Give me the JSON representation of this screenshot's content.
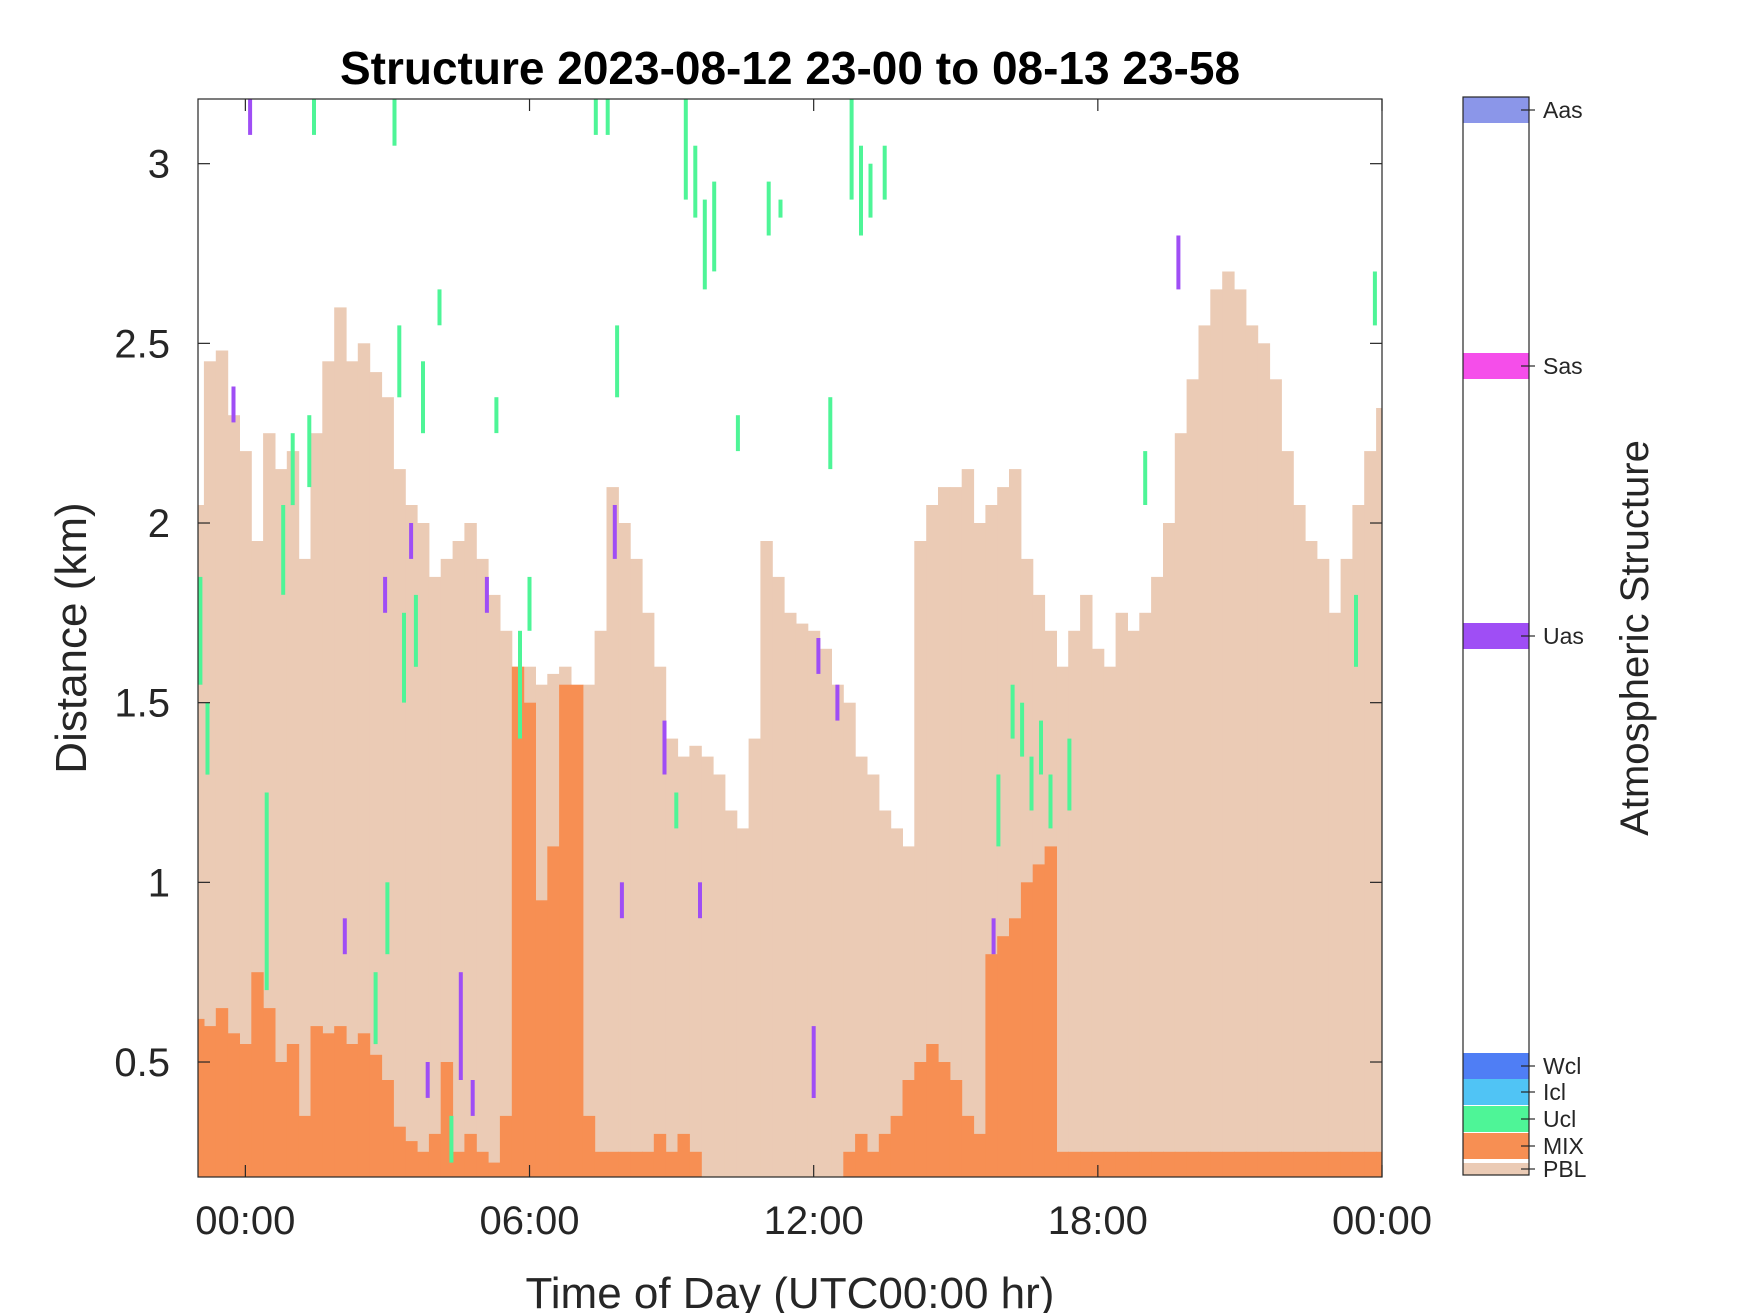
{
  "chart_data": {
    "type": "heatmap",
    "title": "Structure 2023-08-12 23-00 to 08-13 23-58",
    "xlabel": "Time of Day (UTC00:00 hr)",
    "ylabel": "Distance (km)",
    "xlim_hours": [
      -1,
      24
    ],
    "ylim": [
      0.18,
      3.18
    ],
    "x_ticks": [
      {
        "value": 0,
        "label": "00:00"
      },
      {
        "value": 6,
        "label": "06:00"
      },
      {
        "value": 12,
        "label": "12:00"
      },
      {
        "value": 18,
        "label": "18:00"
      },
      {
        "value": 24,
        "label": "00:00"
      }
    ],
    "y_ticks": [
      {
        "value": 0.5,
        "label": "0.5"
      },
      {
        "value": 1,
        "label": "1"
      },
      {
        "value": 1.5,
        "label": "1.5"
      },
      {
        "value": 2,
        "label": "2"
      },
      {
        "value": 2.5,
        "label": "2.5"
      },
      {
        "value": 3,
        "label": "3"
      }
    ],
    "colorbar": {
      "label": "Atmospheric Structure",
      "classes": [
        {
          "name": "PBL",
          "color": "#EBCBB5"
        },
        {
          "name": "MIX",
          "color": "#F78F53"
        },
        {
          "name": "Ucl",
          "color": "#4EF597"
        },
        {
          "name": "Icl",
          "color": "#50C4F5"
        },
        {
          "name": "Wcl",
          "color": "#4F7EF5"
        },
        {
          "name": "Uas",
          "color": "#9F4EF5"
        },
        {
          "name": "Sas",
          "color": "#F54EEA"
        },
        {
          "name": "Aas",
          "color": "#8B96E9"
        }
      ]
    },
    "series": [
      {
        "name": "PBL",
        "points": [
          [
            -1.0,
            2.05
          ],
          [
            -0.75,
            2.45
          ],
          [
            -0.5,
            2.48
          ],
          [
            -0.25,
            2.3
          ],
          [
            0.0,
            2.2
          ],
          [
            0.25,
            1.95
          ],
          [
            0.5,
            2.25
          ],
          [
            0.75,
            2.15
          ],
          [
            1.0,
            2.2
          ],
          [
            1.25,
            1.9
          ],
          [
            1.5,
            2.25
          ],
          [
            1.75,
            2.45
          ],
          [
            2.0,
            2.6
          ],
          [
            2.25,
            2.45
          ],
          [
            2.5,
            2.5
          ],
          [
            2.75,
            2.42
          ],
          [
            3.0,
            2.35
          ],
          [
            3.25,
            2.15
          ],
          [
            3.5,
            2.05
          ],
          [
            3.75,
            2.0
          ],
          [
            4.0,
            1.85
          ],
          [
            4.25,
            1.9
          ],
          [
            4.5,
            1.95
          ],
          [
            4.75,
            2.0
          ],
          [
            5.0,
            1.9
          ],
          [
            5.25,
            1.8
          ],
          [
            5.5,
            1.7
          ],
          [
            5.75,
            1.6
          ],
          [
            6.0,
            1.6
          ],
          [
            6.25,
            1.55
          ],
          [
            6.5,
            1.58
          ],
          [
            6.75,
            1.6
          ],
          [
            7.0,
            1.5
          ],
          [
            7.25,
            1.55
          ],
          [
            7.5,
            1.7
          ],
          [
            7.75,
            2.1
          ],
          [
            8.0,
            2.0
          ],
          [
            8.25,
            1.9
          ],
          [
            8.5,
            1.75
          ],
          [
            8.75,
            1.6
          ],
          [
            9.0,
            1.4
          ],
          [
            9.25,
            1.35
          ],
          [
            9.5,
            1.38
          ],
          [
            9.75,
            1.35
          ],
          [
            10.0,
            1.3
          ],
          [
            10.25,
            1.2
          ],
          [
            10.5,
            1.15
          ],
          [
            10.75,
            1.4
          ],
          [
            11.0,
            1.95
          ],
          [
            11.25,
            1.85
          ],
          [
            11.5,
            1.75
          ],
          [
            11.75,
            1.72
          ],
          [
            12.0,
            1.7
          ],
          [
            12.25,
            1.65
          ],
          [
            12.5,
            1.55
          ],
          [
            12.75,
            1.5
          ],
          [
            13.0,
            1.35
          ],
          [
            13.25,
            1.3
          ],
          [
            13.5,
            1.2
          ],
          [
            13.75,
            1.15
          ],
          [
            14.0,
            1.1
          ],
          [
            14.25,
            1.95
          ],
          [
            14.5,
            2.05
          ],
          [
            14.75,
            2.1
          ],
          [
            15.0,
            2.1
          ],
          [
            15.25,
            2.15
          ],
          [
            15.5,
            2.0
          ],
          [
            15.75,
            2.05
          ],
          [
            16.0,
            2.1
          ],
          [
            16.25,
            2.15
          ],
          [
            16.5,
            1.9
          ],
          [
            16.75,
            1.8
          ],
          [
            17.0,
            1.7
          ],
          [
            17.25,
            1.6
          ],
          [
            17.5,
            1.7
          ],
          [
            17.75,
            1.8
          ],
          [
            18.0,
            1.65
          ],
          [
            18.25,
            1.6
          ],
          [
            18.5,
            1.75
          ],
          [
            18.75,
            1.7
          ],
          [
            19.0,
            1.75
          ],
          [
            19.25,
            1.85
          ],
          [
            19.5,
            2.0
          ],
          [
            19.75,
            2.25
          ],
          [
            20.0,
            2.4
          ],
          [
            20.25,
            2.55
          ],
          [
            20.5,
            2.65
          ],
          [
            20.75,
            2.7
          ],
          [
            21.0,
            2.65
          ],
          [
            21.25,
            2.55
          ],
          [
            21.5,
            2.5
          ],
          [
            21.75,
            2.4
          ],
          [
            22.0,
            2.2
          ],
          [
            22.25,
            2.05
          ],
          [
            22.5,
            1.95
          ],
          [
            22.75,
            1.9
          ],
          [
            23.0,
            1.75
          ],
          [
            23.25,
            1.9
          ],
          [
            23.5,
            2.05
          ],
          [
            23.75,
            2.2
          ],
          [
            24.0,
            2.32
          ]
        ]
      },
      {
        "name": "MIX",
        "points": [
          [
            -1.0,
            0.62
          ],
          [
            -0.75,
            0.6
          ],
          [
            -0.5,
            0.65
          ],
          [
            -0.25,
            0.58
          ],
          [
            0.0,
            0.55
          ],
          [
            0.25,
            0.75
          ],
          [
            0.5,
            0.65
          ],
          [
            0.75,
            0.5
          ],
          [
            1.0,
            0.55
          ],
          [
            1.25,
            0.35
          ],
          [
            1.5,
            0.6
          ],
          [
            1.75,
            0.58
          ],
          [
            2.0,
            0.6
          ],
          [
            2.25,
            0.55
          ],
          [
            2.5,
            0.58
          ],
          [
            2.75,
            0.52
          ],
          [
            3.0,
            0.45
          ],
          [
            3.25,
            0.32
          ],
          [
            3.5,
            0.28
          ],
          [
            3.75,
            0.25
          ],
          [
            4.0,
            0.3
          ],
          [
            4.25,
            0.5
          ],
          [
            4.5,
            0.25
          ],
          [
            4.75,
            0.3
          ],
          [
            5.0,
            0.25
          ],
          [
            5.25,
            0.22
          ],
          [
            5.5,
            0.35
          ],
          [
            5.75,
            1.6
          ],
          [
            6.0,
            1.5
          ],
          [
            6.25,
            0.95
          ],
          [
            6.5,
            1.1
          ],
          [
            6.75,
            1.55
          ],
          [
            7.0,
            1.55
          ],
          [
            7.25,
            0.35
          ],
          [
            7.5,
            0.25
          ],
          [
            7.75,
            0.25
          ],
          [
            8.0,
            0.25
          ],
          [
            8.25,
            0.25
          ],
          [
            8.5,
            0.25
          ],
          [
            8.75,
            0.3
          ],
          [
            9.0,
            0.25
          ],
          [
            9.25,
            0.3
          ],
          [
            9.5,
            0.25
          ],
          [
            9.75,
            0.0
          ],
          [
            10.0,
            0.0
          ],
          [
            10.25,
            0.0
          ],
          [
            10.5,
            0.0
          ],
          [
            10.75,
            0.0
          ],
          [
            11.0,
            0.0
          ],
          [
            11.25,
            0.0
          ],
          [
            11.5,
            0.0
          ],
          [
            11.75,
            0.0
          ],
          [
            12.0,
            0.0
          ],
          [
            12.25,
            0.0
          ],
          [
            12.5,
            0.0
          ],
          [
            12.75,
            0.25
          ],
          [
            13.0,
            0.3
          ],
          [
            13.25,
            0.25
          ],
          [
            13.5,
            0.3
          ],
          [
            13.75,
            0.35
          ],
          [
            14.0,
            0.45
          ],
          [
            14.25,
            0.5
          ],
          [
            14.5,
            0.55
          ],
          [
            14.75,
            0.5
          ],
          [
            15.0,
            0.45
          ],
          [
            15.25,
            0.35
          ],
          [
            15.5,
            0.3
          ],
          [
            15.75,
            0.8
          ],
          [
            16.0,
            0.85
          ],
          [
            16.25,
            0.9
          ],
          [
            16.5,
            1.0
          ],
          [
            16.75,
            1.05
          ],
          [
            17.0,
            1.1
          ],
          [
            17.25,
            0.25
          ],
          [
            17.5,
            0.25
          ],
          [
            17.75,
            0.25
          ],
          [
            18.0,
            0.25
          ],
          [
            18.25,
            0.25
          ],
          [
            18.5,
            0.25
          ],
          [
            18.75,
            0.25
          ],
          [
            19.0,
            0.25
          ],
          [
            19.25,
            0.25
          ],
          [
            19.5,
            0.25
          ],
          [
            19.75,
            0.25
          ],
          [
            20.0,
            0.25
          ],
          [
            20.25,
            0.25
          ],
          [
            20.5,
            0.25
          ],
          [
            20.75,
            0.25
          ],
          [
            21.0,
            0.25
          ],
          [
            21.25,
            0.25
          ],
          [
            21.5,
            0.25
          ],
          [
            21.75,
            0.25
          ],
          [
            22.0,
            0.25
          ],
          [
            22.25,
            0.25
          ],
          [
            22.5,
            0.25
          ],
          [
            22.75,
            0.25
          ],
          [
            23.0,
            0.25
          ],
          [
            23.25,
            0.25
          ],
          [
            23.5,
            0.25
          ],
          [
            23.75,
            0.25
          ],
          [
            24.0,
            0.25
          ]
        ]
      },
      {
        "name": "Ucl",
        "segments": [
          [
            -0.95,
            1.55,
            1.85
          ],
          [
            -0.8,
            1.3,
            1.5
          ],
          [
            0.45,
            0.7,
            1.25
          ],
          [
            0.8,
            1.8,
            2.05
          ],
          [
            1.0,
            2.05,
            2.25
          ],
          [
            1.35,
            2.1,
            2.3
          ],
          [
            1.45,
            3.08,
            3.18
          ],
          [
            2.75,
            0.55,
            0.75
          ],
          [
            3.0,
            0.8,
            1.0
          ],
          [
            3.15,
            3.05,
            3.18
          ],
          [
            3.25,
            2.35,
            2.55
          ],
          [
            3.35,
            1.5,
            1.75
          ],
          [
            3.6,
            1.6,
            1.8
          ],
          [
            3.75,
            2.25,
            2.45
          ],
          [
            4.1,
            2.55,
            2.65
          ],
          [
            4.35,
            0.22,
            0.35
          ],
          [
            5.3,
            2.25,
            2.35
          ],
          [
            5.8,
            1.4,
            1.7
          ],
          [
            6.0,
            1.7,
            1.85
          ],
          [
            7.4,
            3.08,
            3.18
          ],
          [
            7.65,
            3.08,
            3.18
          ],
          [
            7.85,
            2.35,
            2.55
          ],
          [
            9.1,
            1.15,
            1.25
          ],
          [
            9.3,
            2.9,
            3.18
          ],
          [
            9.5,
            2.85,
            3.05
          ],
          [
            9.7,
            2.65,
            2.9
          ],
          [
            9.9,
            2.7,
            2.95
          ],
          [
            10.4,
            2.2,
            2.3
          ],
          [
            11.05,
            2.8,
            2.95
          ],
          [
            11.3,
            2.85,
            2.9
          ],
          [
            12.35,
            2.15,
            2.35
          ],
          [
            12.8,
            2.9,
            3.18
          ],
          [
            13.0,
            2.8,
            3.05
          ],
          [
            13.2,
            2.85,
            3.0
          ],
          [
            13.5,
            2.9,
            3.05
          ],
          [
            15.9,
            1.1,
            1.3
          ],
          [
            16.2,
            1.4,
            1.55
          ],
          [
            16.4,
            1.35,
            1.5
          ],
          [
            16.6,
            1.2,
            1.35
          ],
          [
            16.8,
            1.3,
            1.45
          ],
          [
            17.0,
            1.15,
            1.3
          ],
          [
            17.4,
            1.2,
            1.4
          ],
          [
            19.0,
            2.05,
            2.2
          ],
          [
            23.45,
            1.6,
            1.8
          ],
          [
            23.85,
            2.55,
            2.7
          ]
        ]
      },
      {
        "name": "Uas",
        "segments": [
          [
            -0.25,
            2.28,
            2.38
          ],
          [
            0.1,
            3.08,
            3.18
          ],
          [
            2.1,
            0.8,
            0.9
          ],
          [
            2.95,
            1.75,
            1.85
          ],
          [
            3.5,
            1.9,
            2.0
          ],
          [
            3.85,
            0.4,
            0.5
          ],
          [
            4.55,
            0.45,
            0.75
          ],
          [
            4.8,
            0.35,
            0.45
          ],
          [
            5.1,
            1.75,
            1.85
          ],
          [
            7.8,
            1.9,
            2.05
          ],
          [
            8.85,
            1.3,
            1.45
          ],
          [
            9.6,
            0.9,
            1.0
          ],
          [
            7.95,
            0.9,
            1.0
          ],
          [
            12.0,
            0.4,
            0.6
          ],
          [
            12.1,
            1.58,
            1.68
          ],
          [
            12.5,
            1.45,
            1.55
          ],
          [
            15.8,
            0.8,
            0.9
          ],
          [
            19.7,
            2.65,
            2.8
          ]
        ]
      }
    ]
  }
}
